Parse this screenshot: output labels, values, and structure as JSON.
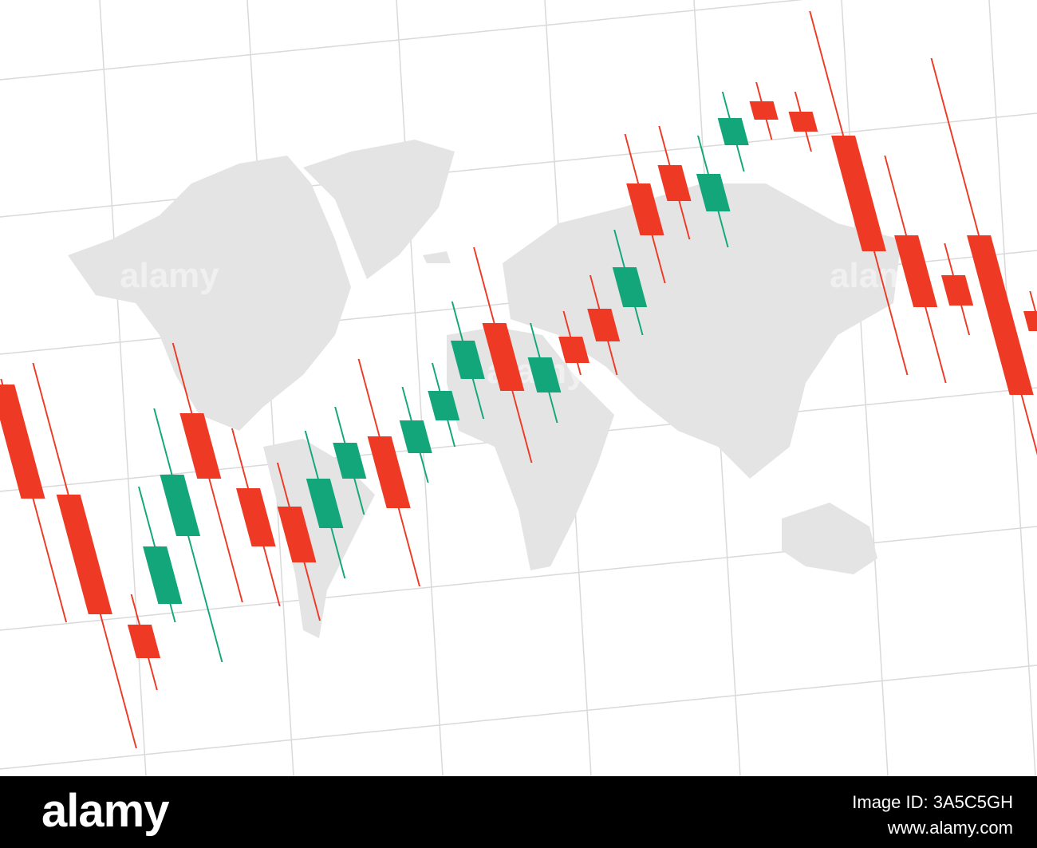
{
  "chart_data": {
    "type": "candlestick",
    "open": [
      518,
      380,
      217,
      243,
      328,
      482,
      388,
      365,
      338,
      400,
      453,
      432,
      473,
      525,
      595,
      508,
      578,
      613,
      615,
      770,
      793,
      735,
      818,
      873,
      860,
      830,
      705,
      655,
      705,
      610
    ],
    "high": [
      525,
      545,
      255,
      390,
      488,
      570,
      463,
      420,
      460,
      490,
      550,
      515,
      545,
      622,
      690,
      595,
      610,
      655,
      712,
      832,
      842,
      830,
      885,
      897,
      885,
      986,
      805,
      695,
      927,
      635
    ],
    "low": [
      220,
      62,
      135,
      220,
      170,
      245,
      240,
      222,
      275,
      355,
      265,
      395,
      440,
      475,
      420,
      470,
      530,
      530,
      580,
      645,
      700,
      690,
      785,
      825,
      810,
      530,
      520,
      580,
      400,
      560
    ],
    "close": [
      375,
      230,
      175,
      315,
      405,
      400,
      315,
      295,
      400,
      445,
      363,
      473,
      510,
      573,
      510,
      552,
      545,
      572,
      665,
      705,
      748,
      782,
      852,
      850,
      835,
      685,
      615,
      617,
      505,
      585
    ],
    "up_color": "#13a67a",
    "down_color": "#ee3a24",
    "ylim": [
      0,
      1000
    ]
  },
  "watermark": "alamy",
  "footer": {
    "logo": "alamy",
    "image_id": "Image ID: 3A5C5GH",
    "url": "www.alamy.com"
  }
}
